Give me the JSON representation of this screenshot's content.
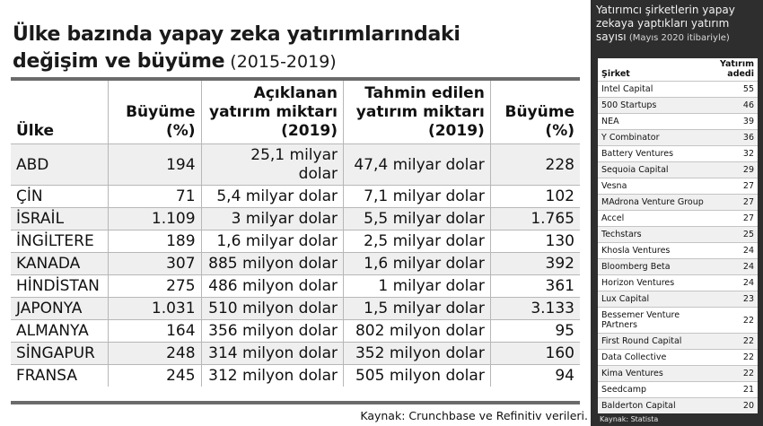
{
  "main": {
    "title_line1": "Ülke bazında yapay zeka yatırımlarındaki",
    "title_line2_bold": "değişim ve büyüme",
    "title_line2_sub": " (2015-2019)",
    "headers": {
      "country": "Ülke",
      "growth1": "Büyüme (%)",
      "announced": "Açıklanan yatırım miktarı (2019)",
      "estimated": "Tahmin edilen yatırım miktarı (2019)",
      "growth2": "Büyüme (%)"
    },
    "rows": [
      {
        "country": "ABD",
        "growth1": "194",
        "announced": "25,1 milyar dolar",
        "estimated": "47,4 milyar dolar",
        "growth2": "228"
      },
      {
        "country": "ÇİN",
        "growth1": "71",
        "announced": "5,4 milyar dolar",
        "estimated": "7,1 milyar dolar",
        "growth2": "102"
      },
      {
        "country": "İSRAİL",
        "growth1": "1.109",
        "announced": "3 milyar dolar",
        "estimated": "5,5 milyar dolar",
        "growth2": "1.765"
      },
      {
        "country": "İNGİLTERE",
        "growth1": "189",
        "announced": "1,6 milyar dolar",
        "estimated": "2,5 milyar dolar",
        "growth2": "130"
      },
      {
        "country": "KANADA",
        "growth1": "307",
        "announced": "885 milyon dolar",
        "estimated": "1,6 milyar dolar",
        "growth2": "392"
      },
      {
        "country": "HİNDİSTAN",
        "growth1": "275",
        "announced": "486 milyon dolar",
        "estimated": "1 milyar dolar",
        "growth2": "361"
      },
      {
        "country": "JAPONYA",
        "growth1": "1.031",
        "announced": "510 milyon dolar",
        "estimated": "1,5 milyar dolar",
        "growth2": "3.133"
      },
      {
        "country": "ALMANYA",
        "growth1": "164",
        "announced": "356 milyon dolar",
        "estimated": "802 milyon dolar",
        "growth2": "95"
      },
      {
        "country": "SİNGAPUR",
        "growth1": "248",
        "announced": "314 milyon dolar",
        "estimated": "352 milyon dolar",
        "growth2": "160"
      },
      {
        "country": "FRANSA",
        "growth1": "245",
        "announced": "312 milyon dolar",
        "estimated": "505 milyon dolar",
        "growth2": "94"
      }
    ],
    "source": "Kaynak: Crunchbase ve Refinitiv verileri."
  },
  "side": {
    "title": "Yatırımcı şirketlerin yapay zekaya yaptıkları yatırım sayısı",
    "title_sub": " (Mayıs 2020 itibariyle)",
    "headers": {
      "company": "Şirket",
      "count": "Yatırım adedi"
    },
    "rows": [
      {
        "company": "Intel Capital",
        "count": "55"
      },
      {
        "company": "500 Startups",
        "count": "46"
      },
      {
        "company": "NEA",
        "count": "39"
      },
      {
        "company": "Y Combinator",
        "count": "36"
      },
      {
        "company": "Battery Ventures",
        "count": "32"
      },
      {
        "company": "Sequoia Capital",
        "count": "29"
      },
      {
        "company": "Vesna",
        "count": "27"
      },
      {
        "company": "MAdrona Venture Group",
        "count": "27"
      },
      {
        "company": "Accel",
        "count": "27"
      },
      {
        "company": "Techstars",
        "count": "25"
      },
      {
        "company": "Khosla Ventures",
        "count": "24"
      },
      {
        "company": "Bloomberg Beta",
        "count": "24"
      },
      {
        "company": "Horizon Ventures",
        "count": "24"
      },
      {
        "company": "Lux Capital",
        "count": "23"
      },
      {
        "company": "Bessemer Venture PArtners",
        "count": "22"
      },
      {
        "company": "First Round Capital",
        "count": "22"
      },
      {
        "company": "Data Collective",
        "count": "22"
      },
      {
        "company": "Kima Ventures",
        "count": "22"
      },
      {
        "company": "Seedcamp",
        "count": "21"
      },
      {
        "company": "Balderton Capital",
        "count": "20"
      }
    ],
    "source": "Kaynak: Statista"
  }
}
